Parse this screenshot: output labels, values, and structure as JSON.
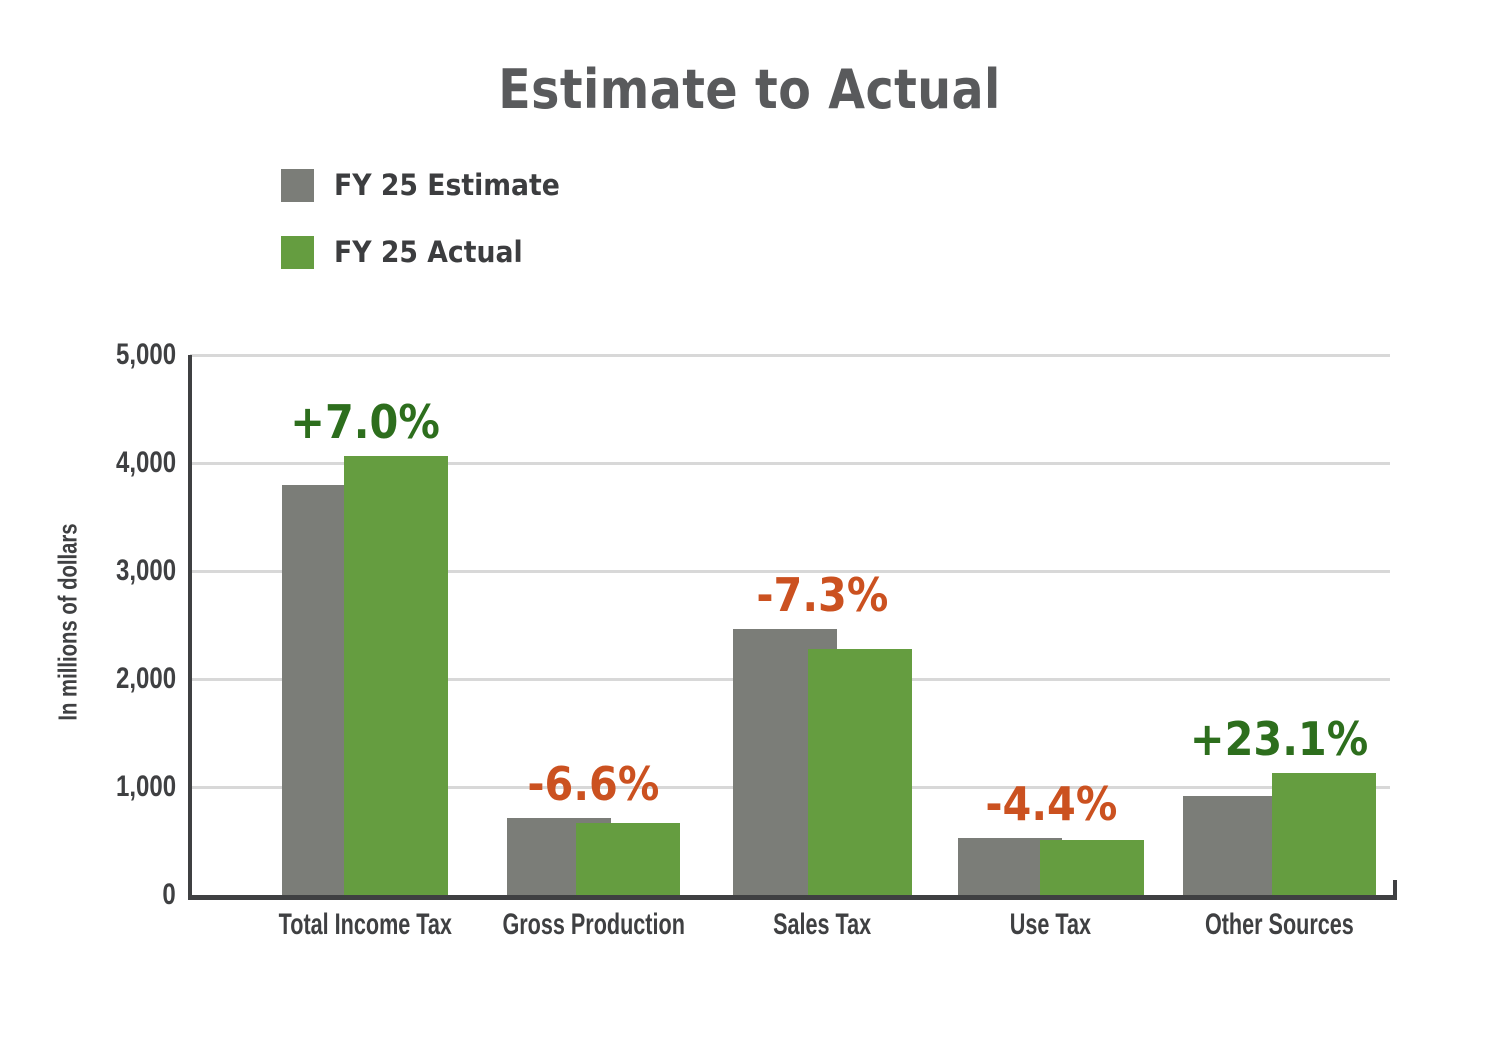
{
  "chart_data": {
    "type": "bar",
    "title": "Estimate to Actual",
    "ylabel": "In millions of dollars",
    "ylim": [
      0,
      5000
    ],
    "ytick_step": 1000,
    "yticks": [
      "0",
      "1,000",
      "2,000",
      "3,000",
      "4,000",
      "5,000"
    ],
    "grid": true,
    "legend_position": "top-left",
    "categories": [
      "Total Income Tax",
      "Gross Production",
      "Sales Tax",
      "Use Tax",
      "Other Sources"
    ],
    "series": [
      {
        "name": "FY 25 Estimate",
        "color": "#7b7d78",
        "values": [
          3800,
          715,
          2460,
          530,
          920
        ]
      },
      {
        "name": "FY 25 Actual",
        "color": "#659d40",
        "values": [
          4066,
          668,
          2280,
          507,
          1133
        ]
      }
    ],
    "change_labels": [
      {
        "text": "+7.0%",
        "sentiment": "positive"
      },
      {
        "text": "-6.6%",
        "sentiment": "negative"
      },
      {
        "text": "-7.3%",
        "sentiment": "negative"
      },
      {
        "text": "-4.4%",
        "sentiment": "negative"
      },
      {
        "text": "+23.1%",
        "sentiment": "positive"
      }
    ],
    "colors": {
      "positive_label": "#2d6e1d",
      "negative_label": "#cb5120",
      "axis": "#3f4042",
      "gridline": "#d8d8d8",
      "title_text": "#595a5c"
    }
  }
}
